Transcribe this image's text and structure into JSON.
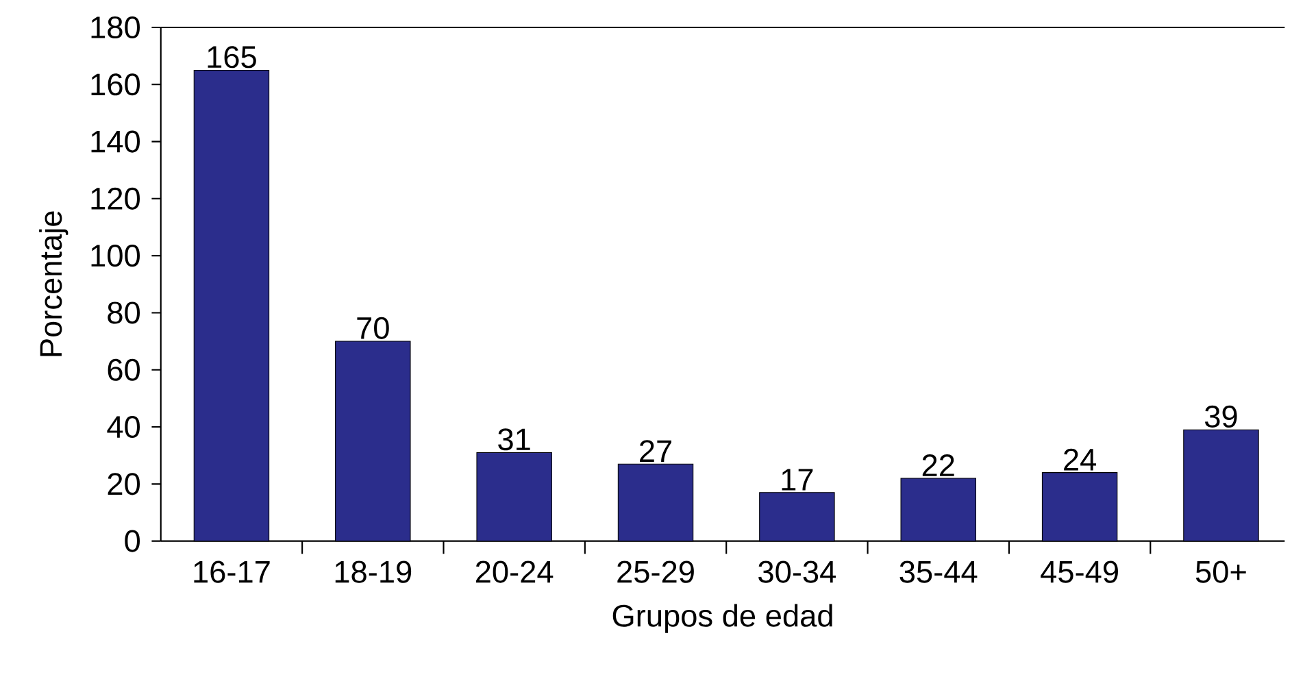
{
  "chart_data": {
    "type": "bar",
    "xlabel": "Grupos de edad",
    "ylabel": "Porcentaje",
    "categories": [
      "16-17",
      "18-19",
      "20-24",
      "25-29",
      "30-34",
      "35-44",
      "45-49",
      "50+"
    ],
    "values": [
      165,
      70,
      31,
      27,
      17,
      22,
      24,
      39
    ],
    "color": "#2b2d8c",
    "ylim": [
      0,
      180
    ],
    "yticks": [
      0,
      20,
      40,
      60,
      80,
      100,
      120,
      140,
      160,
      180
    ],
    "data_labels": true,
    "grid": false
  }
}
